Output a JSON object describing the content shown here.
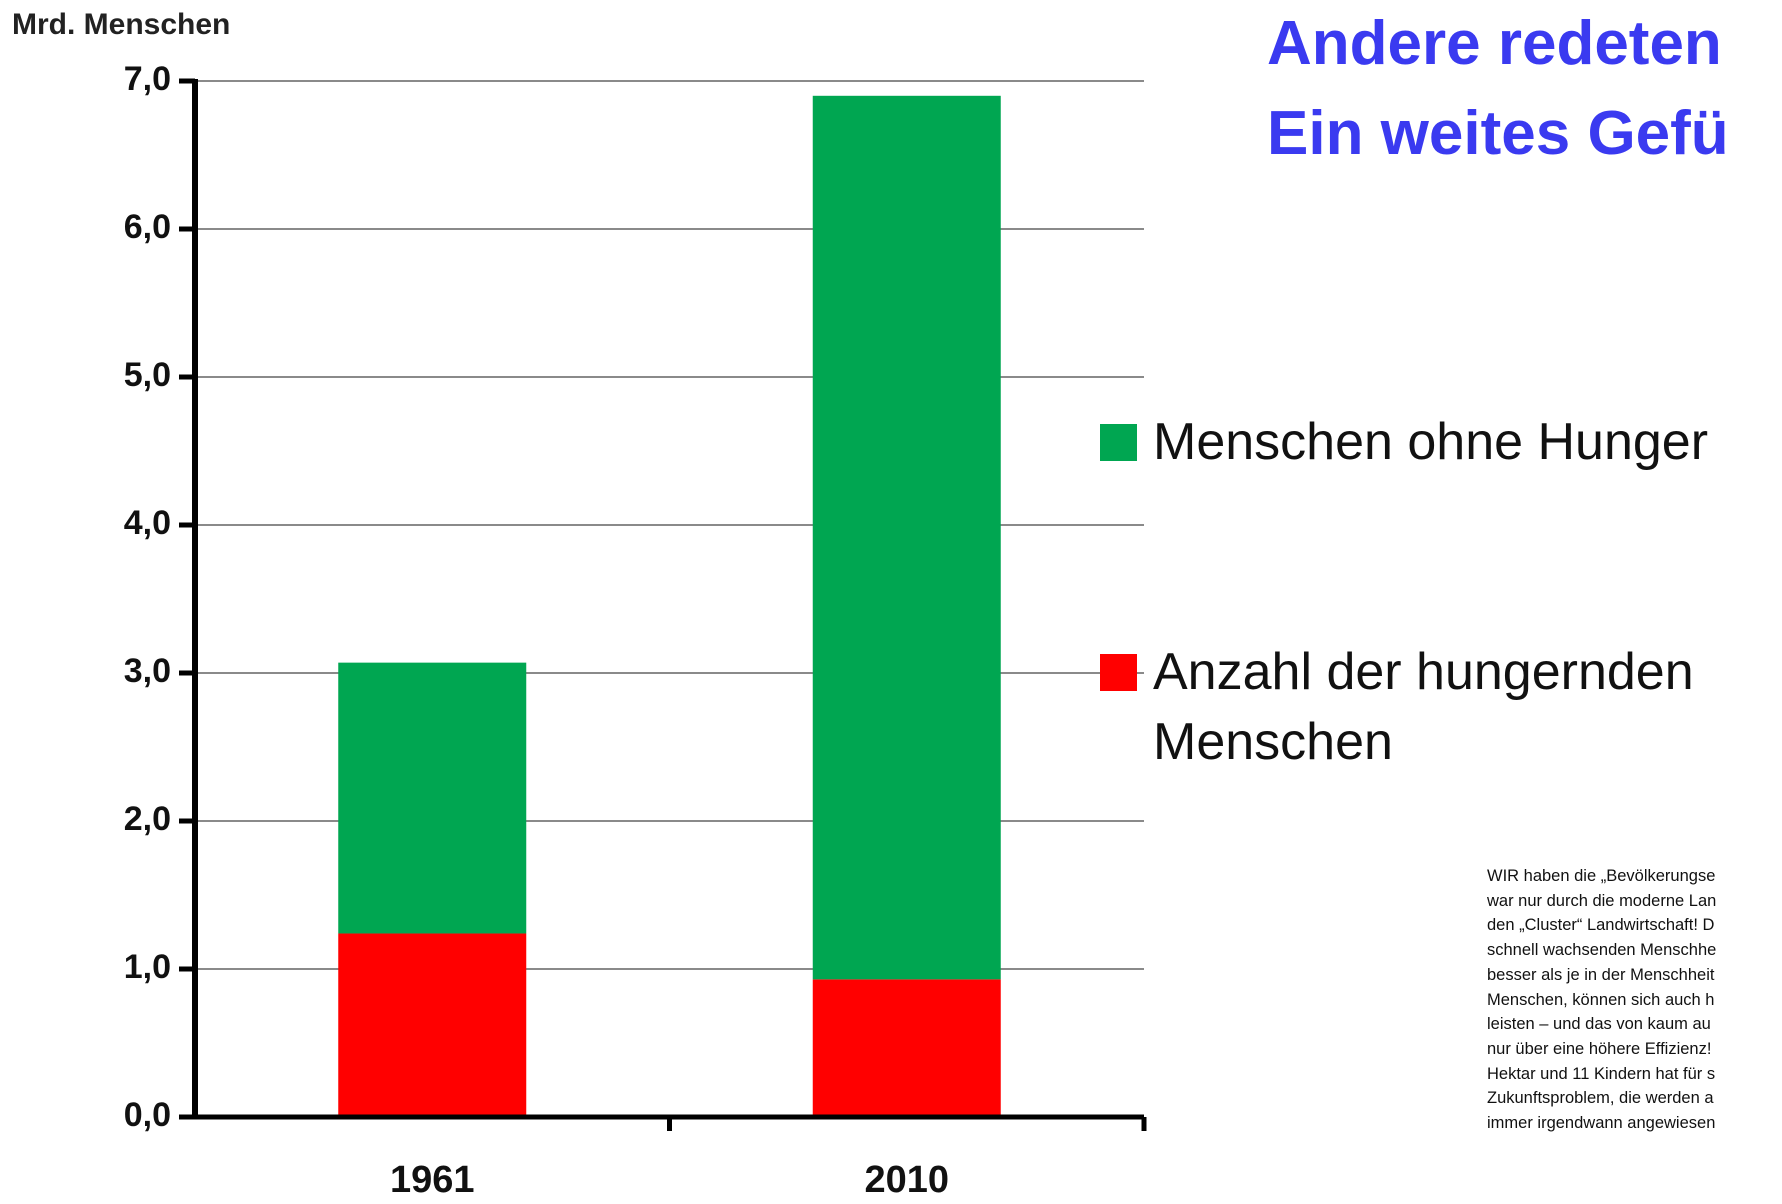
{
  "chart_data": {
    "type": "stacked_bar",
    "title_lines": [
      "Andere redeten",
      "Ein weites Gefü"
    ],
    "y_label": "Mrd. Menschen",
    "categories": [
      "1961",
      "2010"
    ],
    "series": [
      {
        "name": "Anzahl der hungernden Menschen",
        "color": "#ff0000",
        "values": [
          1.24,
          0.93
        ]
      },
      {
        "name": "Menschen ohne Hunger",
        "color": "#00a651",
        "values": [
          1.83,
          5.97
        ]
      }
    ],
    "ylim": [
      0,
      7
    ],
    "yticks": [
      {
        "value": 0,
        "label": "0,0"
      },
      {
        "value": 1,
        "label": "1,0"
      },
      {
        "value": 2,
        "label": "2,0"
      },
      {
        "value": 3,
        "label": "3,0"
      },
      {
        "value": 4,
        "label": "4,0"
      },
      {
        "value": 5,
        "label": "5,0"
      },
      {
        "value": 6,
        "label": "6,0"
      },
      {
        "value": 7,
        "label": "7,0"
      }
    ],
    "grid": true,
    "annotation_lines": [
      "WIR haben die „Bevölkerungse",
      "war nur durch die moderne Lan",
      "den „Cluster“ Landwirtschaft! D",
      "schnell wachsenden Menschhe",
      "besser als je in der Menschheit",
      "Menschen, können sich auch h",
      "leisten –  und das von kaum au",
      "nur über eine höhere Effizienz!",
      "Hektar und 11 Kindern hat für s",
      "Zukunftsproblem, die werden a",
      "immer irgendwann angewiesen"
    ]
  }
}
